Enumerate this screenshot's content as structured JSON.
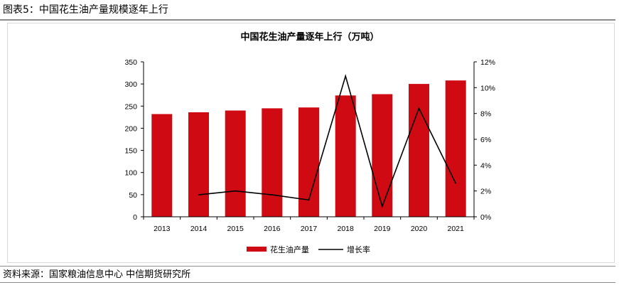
{
  "figure": {
    "caption": "图表5：中国花生油产量规模逐年上行",
    "source": "资料来源：国家粮油信息中心  中信期货研究所"
  },
  "chart_data": {
    "type": "bar",
    "title": "中国花生油产量逐年上行（万吨）",
    "categories": [
      "2013",
      "2014",
      "2015",
      "2016",
      "2017",
      "2018",
      "2019",
      "2020",
      "2021"
    ],
    "series": [
      {
        "name": "花生油产量",
        "type": "bar",
        "axis": "left",
        "color": "#d00a12",
        "values": [
          232,
          236,
          240,
          245,
          247,
          274,
          277,
          300,
          308
        ]
      },
      {
        "name": "增长率",
        "type": "line",
        "axis": "right",
        "color": "#000000",
        "values": [
          null,
          1.7,
          2.0,
          1.7,
          1.3,
          10.9,
          0.8,
          8.4,
          2.6
        ]
      }
    ],
    "y_left": {
      "min": 0,
      "max": 350,
      "ticks": [
        0,
        50,
        100,
        150,
        200,
        250,
        300,
        350
      ]
    },
    "y_right": {
      "min": 0,
      "max": 12,
      "ticks": [
        0,
        2,
        4,
        6,
        8,
        10,
        12
      ],
      "tick_labels": [
        "0%",
        "2%",
        "4%",
        "6%",
        "8%",
        "10%",
        "12%"
      ]
    },
    "grid": false,
    "legend": "bottom-center"
  }
}
